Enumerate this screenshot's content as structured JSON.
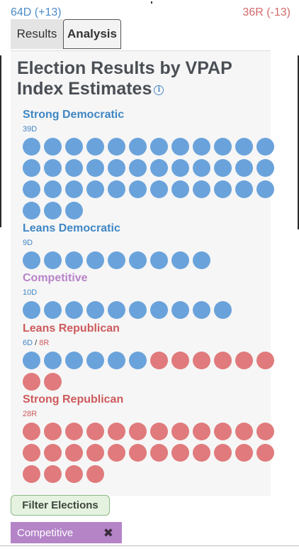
{
  "header": {
    "dem_total": "64D (+13)",
    "rep_total": "36R (-13)"
  },
  "tabs": [
    {
      "label": "Results",
      "active": false
    },
    {
      "label": "Analysis",
      "active": true
    }
  ],
  "panel": {
    "title": "Election Results by VPAP Index Estimates",
    "info_icon": "info-icon"
  },
  "groups": [
    {
      "id": "strong-democratic",
      "title": "Strong Democratic",
      "title_color": "blue",
      "count_parts": [
        {
          "text": "39D",
          "party": "D"
        }
      ],
      "dem": 39,
      "rep": 0
    },
    {
      "id": "leans-democratic",
      "title": "Leans Democratic",
      "title_color": "blue",
      "count_parts": [
        {
          "text": "9D",
          "party": "D"
        }
      ],
      "dem": 9,
      "rep": 0
    },
    {
      "id": "competitive",
      "title": "Competitive",
      "title_color": "purple",
      "count_parts": [
        {
          "text": "10D",
          "party": "D"
        }
      ],
      "dem": 10,
      "rep": 0
    },
    {
      "id": "leans-republican",
      "title": "Leans Republican",
      "title_color": "red",
      "count_parts": [
        {
          "text": "6D",
          "party": "D"
        },
        {
          "text": "8R",
          "party": "R"
        }
      ],
      "dem": 6,
      "rep": 8
    },
    {
      "id": "strong-republican",
      "title": "Strong Republican",
      "title_color": "red",
      "count_parts": [
        {
          "text": "28R",
          "party": "R"
        }
      ],
      "dem": 0,
      "rep": 28
    }
  ],
  "filter": {
    "button_label": "Filter Elections",
    "active_chip": "Competitive",
    "chip_close_icon": "close-icon"
  },
  "colors": {
    "dem": "#6aa3db",
    "rep": "#e07a7c",
    "competitive": "#b484c7"
  }
}
